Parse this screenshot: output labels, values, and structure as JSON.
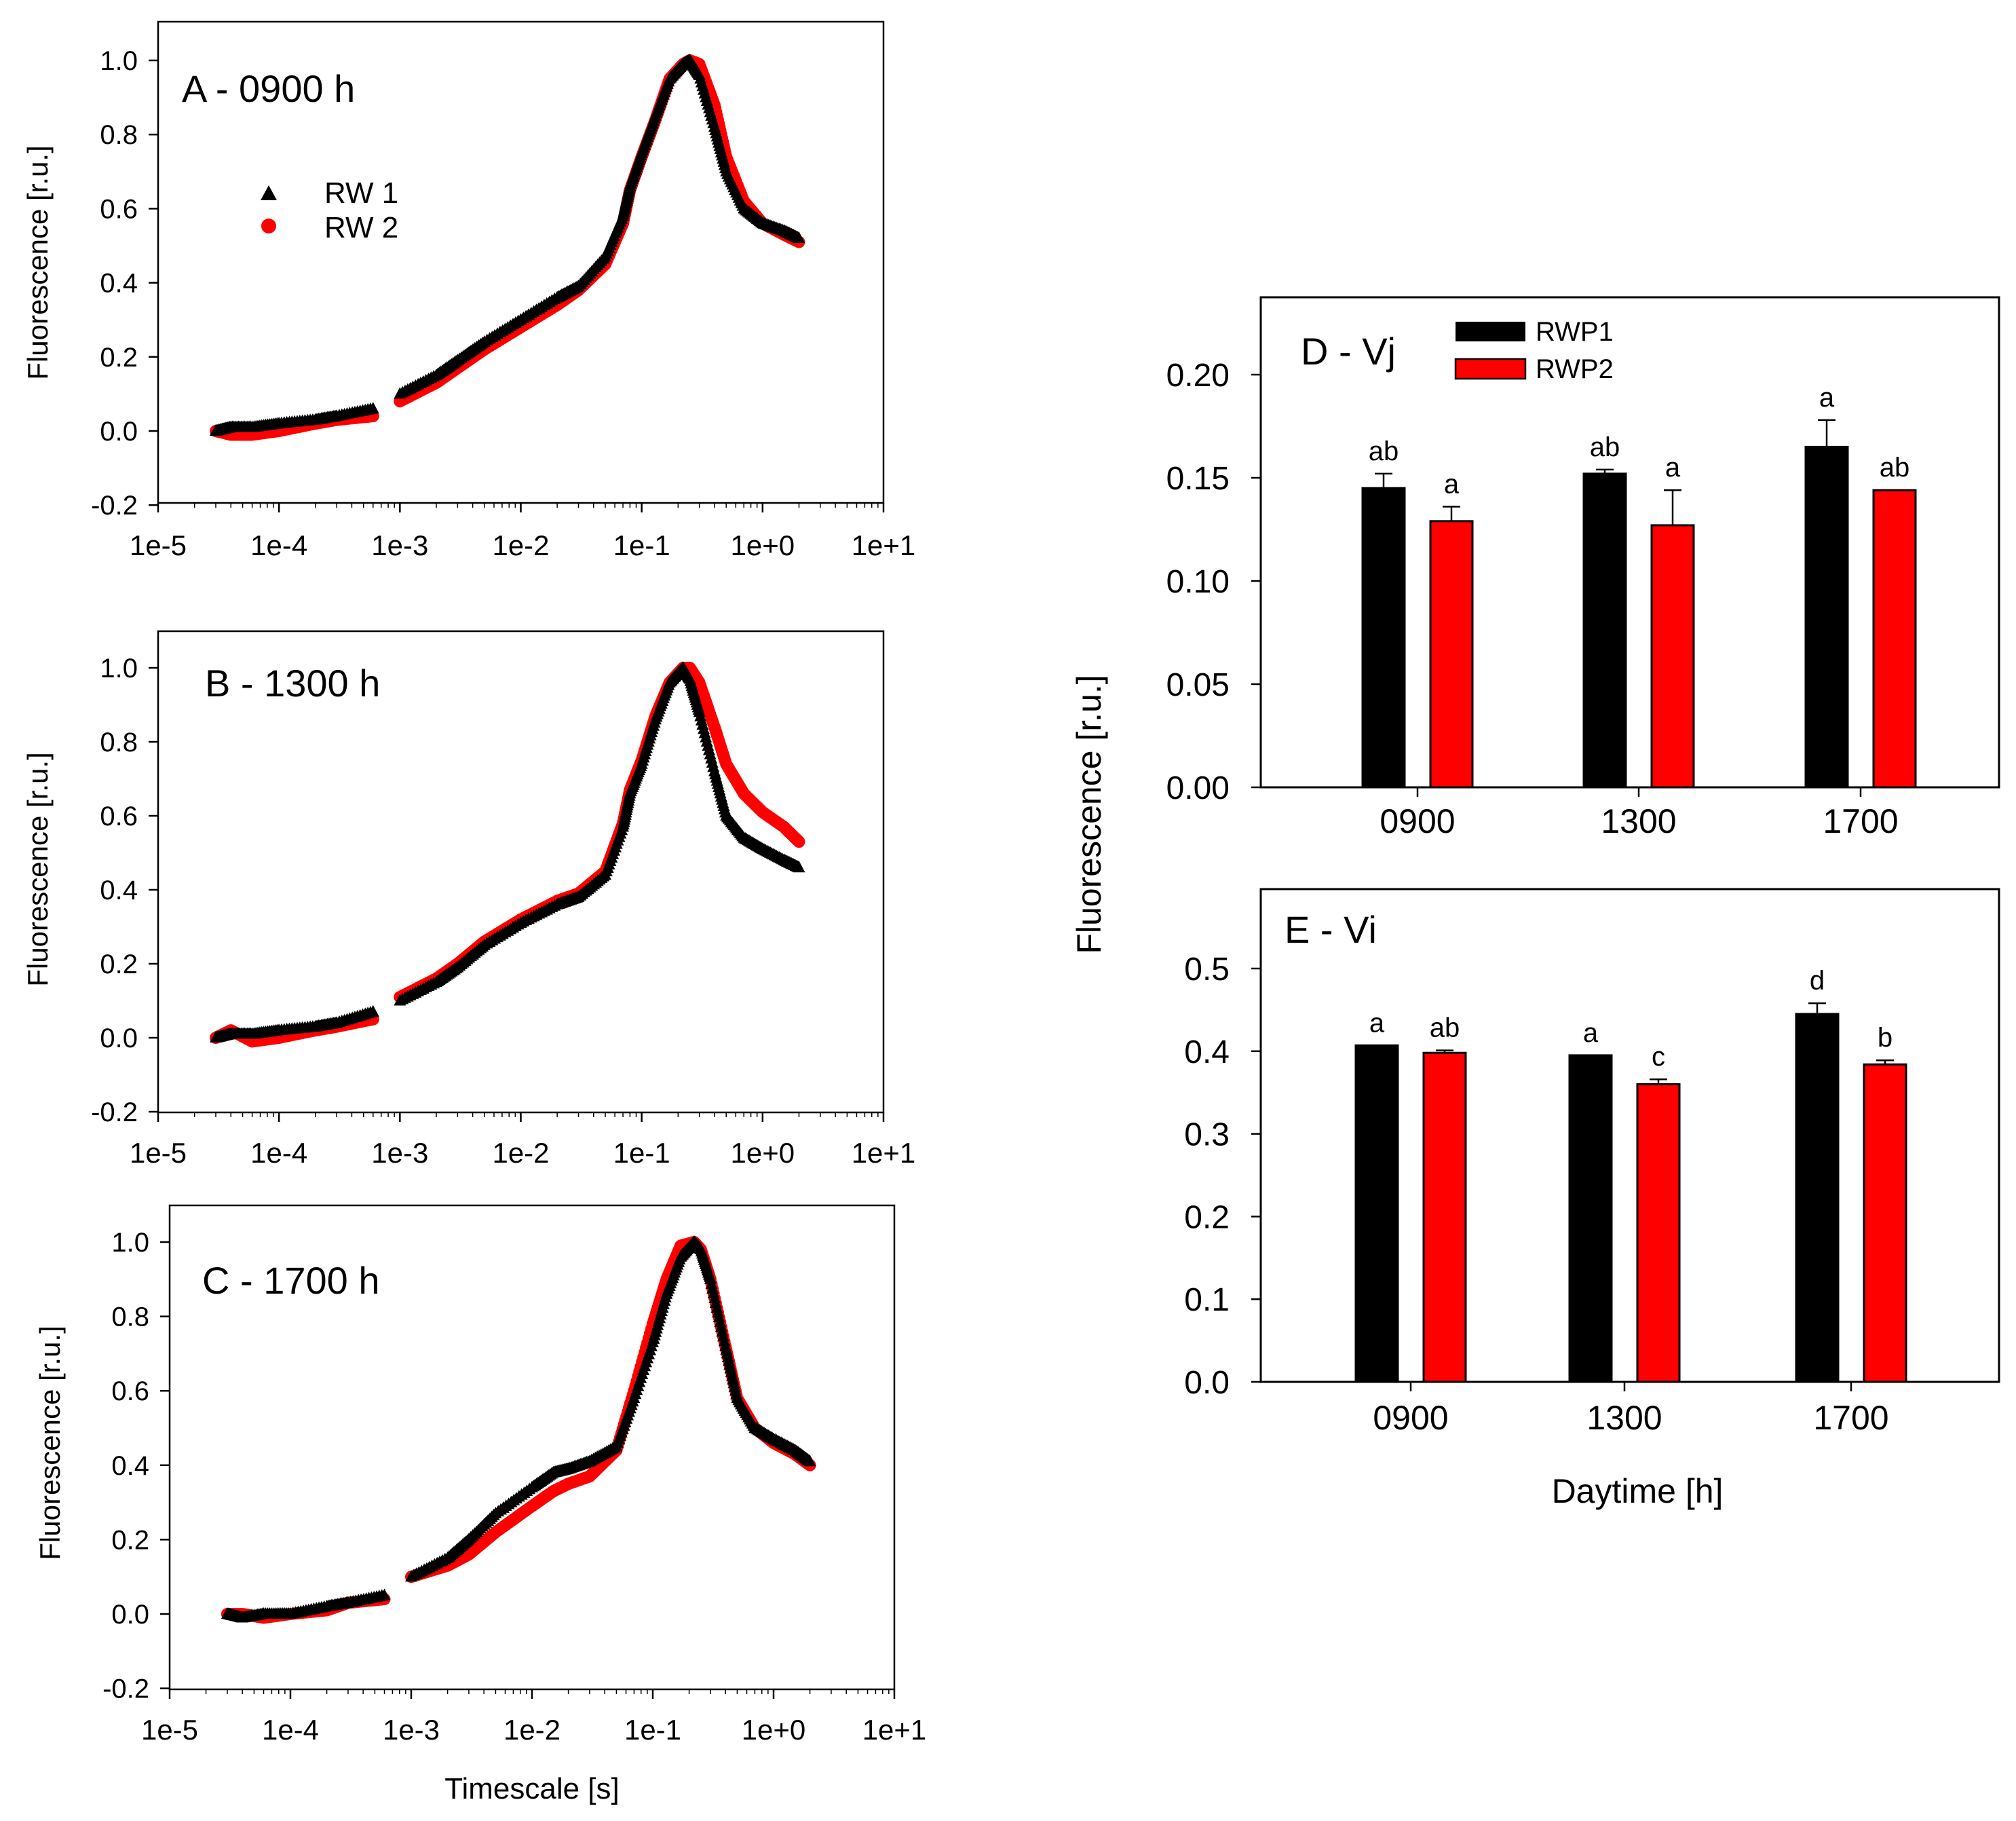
{
  "colors": {
    "series1": "#000000",
    "series2": "#ff0000",
    "frame": "#000000",
    "background": "#ffffff"
  },
  "chart_data": [
    {
      "id": "A",
      "type": "scatter",
      "xscale": "log",
      "title": "A - 0900 h",
      "xlabel": "",
      "ylabel": "Fluorescence [r.u.]",
      "xlim": [
        1e-05,
        10
      ],
      "ylim": [
        -0.2,
        1.05
      ],
      "xticks": [
        "1e-5",
        "1e-4",
        "1e-3",
        "1e-2",
        "1e-1",
        "1e+0",
        "1e+1"
      ],
      "yticks": [
        "-0.2",
        "0.0",
        "0.2",
        "0.4",
        "0.6",
        "0.8",
        "1.0"
      ],
      "legend": {
        "position": "upper-left",
        "entries": [
          "RW 1",
          "RW 2"
        ]
      },
      "series": [
        {
          "name": "RW 1",
          "marker": "triangle",
          "x": [
            3e-05,
            4e-05,
            6e-05,
            0.0001,
            0.0002,
            0.0003,
            0.0006,
            0.001,
            0.002,
            0.003,
            0.005,
            0.01,
            0.02,
            0.03,
            0.05,
            0.07,
            0.08,
            0.1,
            0.13,
            0.17,
            0.22,
            0.25,
            0.3,
            0.4,
            0.5,
            0.7,
            1.0,
            1.5,
            2.0
          ],
          "y": [
            0.0,
            0.01,
            0.01,
            0.02,
            0.03,
            0.04,
            0.06,
            0.1,
            0.15,
            0.19,
            0.24,
            0.3,
            0.36,
            0.39,
            0.47,
            0.58,
            0.66,
            0.75,
            0.85,
            0.95,
            0.99,
            1.0,
            0.96,
            0.82,
            0.7,
            0.6,
            0.56,
            0.54,
            0.52
          ]
        },
        {
          "name": "RW 2",
          "marker": "circle",
          "x": [
            3e-05,
            4e-05,
            6e-05,
            0.0001,
            0.0002,
            0.0003,
            0.0006,
            0.001,
            0.002,
            0.003,
            0.005,
            0.01,
            0.02,
            0.03,
            0.05,
            0.07,
            0.08,
            0.1,
            0.13,
            0.17,
            0.22,
            0.25,
            0.3,
            0.4,
            0.5,
            0.7,
            1.0,
            1.5,
            2.0
          ],
          "y": [
            0.0,
            -0.01,
            -0.01,
            0.0,
            0.02,
            0.03,
            0.04,
            0.08,
            0.13,
            0.17,
            0.22,
            0.28,
            0.34,
            0.38,
            0.45,
            0.56,
            0.65,
            0.74,
            0.84,
            0.95,
            0.99,
            1.0,
            0.99,
            0.88,
            0.74,
            0.62,
            0.56,
            0.53,
            0.51
          ]
        }
      ]
    },
    {
      "id": "B",
      "type": "scatter",
      "xscale": "log",
      "title": "B - 1300 h",
      "xlabel": "",
      "ylabel": "Fluorescence [r.u.]",
      "xlim": [
        1e-05,
        10
      ],
      "ylim": [
        -0.2,
        1.05
      ],
      "xticks": [
        "1e-5",
        "1e-4",
        "1e-3",
        "1e-2",
        "1e-1",
        "1e+0",
        "1e+1"
      ],
      "yticks": [
        "-0.2",
        "0.0",
        "0.2",
        "0.4",
        "0.6",
        "0.8",
        "1.0"
      ],
      "series": [
        {
          "name": "RW 1",
          "marker": "triangle",
          "x": [
            3e-05,
            4e-05,
            6e-05,
            0.0001,
            0.0002,
            0.0003,
            0.0006,
            0.001,
            0.002,
            0.003,
            0.005,
            0.01,
            0.02,
            0.03,
            0.05,
            0.07,
            0.08,
            0.1,
            0.13,
            0.17,
            0.22,
            0.25,
            0.3,
            0.4,
            0.5,
            0.7,
            1.0,
            1.5,
            2.0
          ],
          "y": [
            0.0,
            0.01,
            0.01,
            0.02,
            0.03,
            0.04,
            0.07,
            0.1,
            0.15,
            0.19,
            0.25,
            0.31,
            0.36,
            0.38,
            0.44,
            0.57,
            0.66,
            0.74,
            0.86,
            0.96,
            1.0,
            0.97,
            0.88,
            0.72,
            0.6,
            0.54,
            0.51,
            0.48,
            0.46
          ]
        },
        {
          "name": "RW 2",
          "marker": "circle",
          "x": [
            3e-05,
            4e-05,
            6e-05,
            0.0001,
            0.0002,
            0.0003,
            0.0006,
            0.001,
            0.002,
            0.003,
            0.005,
            0.01,
            0.02,
            0.03,
            0.05,
            0.07,
            0.08,
            0.1,
            0.13,
            0.17,
            0.22,
            0.25,
            0.3,
            0.4,
            0.5,
            0.7,
            1.0,
            1.5,
            2.0
          ],
          "y": [
            0.0,
            0.02,
            -0.01,
            0.0,
            0.02,
            0.03,
            0.05,
            0.11,
            0.16,
            0.2,
            0.26,
            0.32,
            0.37,
            0.39,
            0.45,
            0.58,
            0.67,
            0.75,
            0.87,
            0.96,
            1.0,
            1.0,
            0.96,
            0.84,
            0.74,
            0.66,
            0.61,
            0.57,
            0.53
          ]
        }
      ]
    },
    {
      "id": "C",
      "type": "scatter",
      "xscale": "log",
      "title": "C - 1700 h",
      "xlabel": "Timescale [s]",
      "ylabel": "Fluorescence [r.u.]",
      "xlim": [
        1e-05,
        10
      ],
      "ylim": [
        -0.2,
        1.05
      ],
      "xticks": [
        "1e-5",
        "1e-4",
        "1e-3",
        "1e-2",
        "1e-1",
        "1e+0",
        "1e+1"
      ],
      "yticks": [
        "-0.2",
        "0.0",
        "0.2",
        "0.4",
        "0.6",
        "0.8",
        "1.0"
      ],
      "series": [
        {
          "name": "RW 1",
          "marker": "triangle",
          "x": [
            3e-05,
            4e-05,
            6e-05,
            0.0001,
            0.0002,
            0.0003,
            0.0006,
            0.001,
            0.002,
            0.003,
            0.005,
            0.01,
            0.015,
            0.02,
            0.03,
            0.05,
            0.07,
            0.1,
            0.13,
            0.17,
            0.22,
            0.25,
            0.3,
            0.4,
            0.5,
            0.7,
            1.0,
            1.5,
            2.0
          ],
          "y": [
            0.0,
            -0.01,
            0.0,
            0.0,
            0.02,
            0.03,
            0.05,
            0.1,
            0.15,
            0.2,
            0.27,
            0.34,
            0.38,
            0.39,
            0.41,
            0.45,
            0.58,
            0.73,
            0.86,
            0.96,
            1.0,
            0.98,
            0.9,
            0.72,
            0.58,
            0.5,
            0.47,
            0.44,
            0.41
          ]
        },
        {
          "name": "RW 2",
          "marker": "circle",
          "x": [
            3e-05,
            4e-05,
            6e-05,
            0.0001,
            0.0002,
            0.0003,
            0.0006,
            0.001,
            0.002,
            0.003,
            0.005,
            0.01,
            0.015,
            0.02,
            0.03,
            0.05,
            0.07,
            0.1,
            0.13,
            0.17,
            0.22,
            0.25,
            0.3,
            0.4,
            0.5,
            0.7,
            1.0,
            1.5,
            2.0
          ],
          "y": [
            0.0,
            0.0,
            -0.01,
            0.0,
            0.01,
            0.03,
            0.04,
            0.1,
            0.13,
            0.16,
            0.22,
            0.29,
            0.33,
            0.35,
            0.37,
            0.44,
            0.6,
            0.78,
            0.9,
            0.99,
            1.0,
            0.98,
            0.9,
            0.72,
            0.58,
            0.5,
            0.46,
            0.43,
            0.4
          ]
        }
      ]
    },
    {
      "id": "D",
      "type": "bar",
      "title": "D - Vj",
      "xlabel": "",
      "ylabel": "Fluorescence [r.u.]",
      "categories": [
        "0900",
        "1300",
        "1700"
      ],
      "ylim": [
        0,
        0.23
      ],
      "yticks": [
        "0.00",
        "0.05",
        "0.10",
        "0.15",
        "0.20"
      ],
      "legend": {
        "position": "top-center",
        "entries": [
          "RWP1",
          "RWP2"
        ]
      },
      "series": [
        {
          "name": "RWP1",
          "values": [
            0.145,
            0.152,
            0.165
          ],
          "errors": [
            0.007,
            0.002,
            0.013
          ],
          "letters": [
            "ab",
            "ab",
            "a"
          ]
        },
        {
          "name": "RWP2",
          "values": [
            0.129,
            0.127,
            0.144
          ],
          "errors": [
            0.007,
            0.017,
            0.0
          ],
          "letters": [
            "a",
            "a",
            "ab"
          ]
        }
      ]
    },
    {
      "id": "E",
      "type": "bar",
      "title": "E - Vi",
      "xlabel": "Daytime [h]",
      "ylabel": "",
      "categories": [
        "0900",
        "1300",
        "1700"
      ],
      "ylim": [
        0,
        0.58
      ],
      "yticks": [
        "0.0",
        "0.1",
        "0.2",
        "0.3",
        "0.4",
        "0.5"
      ],
      "series": [
        {
          "name": "RWP1",
          "values": [
            0.407,
            0.395,
            0.445
          ],
          "errors": [
            0.0,
            0.0,
            0.013
          ],
          "letters": [
            "a",
            "a",
            "d"
          ]
        },
        {
          "name": "RWP2",
          "values": [
            0.398,
            0.36,
            0.384
          ],
          "errors": [
            0.003,
            0.006,
            0.005
          ],
          "letters": [
            "ab",
            "c",
            "b"
          ]
        }
      ]
    }
  ]
}
